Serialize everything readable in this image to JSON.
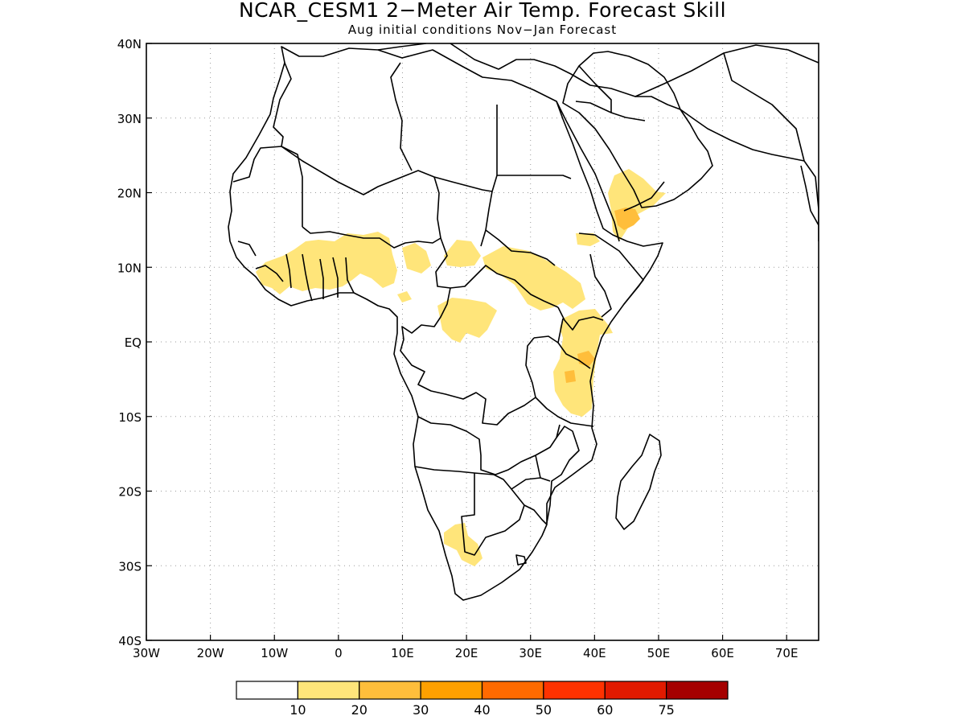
{
  "title": "NCAR_CESM1 2−Meter Air Temp. Forecast Skill",
  "subtitle": "Aug initial conditions  Nov−Jan Forecast",
  "map": {
    "lon_range": [
      -30,
      75
    ],
    "lat_range": [
      -40,
      40
    ],
    "x_ticks": [
      {
        "lon": -30,
        "label": "30W"
      },
      {
        "lon": -20,
        "label": "20W"
      },
      {
        "lon": -10,
        "label": "10W"
      },
      {
        "lon": 0,
        "label": "0"
      },
      {
        "lon": 10,
        "label": "10E"
      },
      {
        "lon": 20,
        "label": "20E"
      },
      {
        "lon": 30,
        "label": "30E"
      },
      {
        "lon": 40,
        "label": "40E"
      },
      {
        "lon": 50,
        "label": "50E"
      },
      {
        "lon": 60,
        "label": "60E"
      },
      {
        "lon": 70,
        "label": "70E"
      }
    ],
    "y_ticks": [
      {
        "lat": 40,
        "label": "40N"
      },
      {
        "lat": 30,
        "label": "30N"
      },
      {
        "lat": 20,
        "label": "20N"
      },
      {
        "lat": 10,
        "label": "10N"
      },
      {
        "lat": 0,
        "label": "EQ"
      },
      {
        "lat": -10,
        "label": "10S"
      },
      {
        "lat": -20,
        "label": "20S"
      },
      {
        "lat": -30,
        "label": "30S"
      },
      {
        "lat": -40,
        "label": "40S"
      }
    ],
    "grid": "dotted"
  },
  "colorbar": {
    "colors": [
      "#ffffff",
      "#ffe57a",
      "#ffbe3b",
      "#ffa000",
      "#ff6a00",
      "#ff3200",
      "#e11a00",
      "#a50000"
    ],
    "labels": [
      "10",
      "20",
      "30",
      "40",
      "50",
      "60",
      "75"
    ]
  },
  "skill_colors": {
    "c10": "#ffe57a",
    "c20": "#ffbe3b"
  }
}
